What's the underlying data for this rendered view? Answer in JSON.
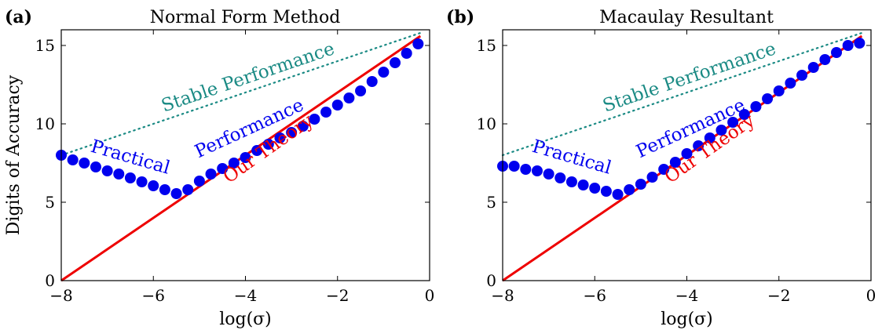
{
  "chart_data": [
    {
      "type": "line",
      "panel_label": "(a)",
      "title": "Normal Form Method",
      "xlabel": "log(σ)",
      "ylabel": "Digits of Accuracy",
      "xlim": [
        -8,
        0
      ],
      "ylim": [
        0,
        16
      ],
      "xticks": [
        "−8",
        "−6",
        "−4",
        "−2",
        "0"
      ],
      "yticks": [
        "0",
        "5",
        "10",
        "15"
      ],
      "series": [
        {
          "name": "Stable Performance",
          "color": "#1a8a84",
          "style": "dotted",
          "x": [
            -8,
            -0.2
          ],
          "y": [
            8.0,
            15.8
          ]
        },
        {
          "name": "Practical Performance",
          "color": "#0000ee",
          "style": "markers",
          "x": [
            -8.0,
            -7.75,
            -7.5,
            -7.25,
            -7.0,
            -6.75,
            -6.5,
            -6.25,
            -6.0,
            -5.75,
            -5.5,
            -5.25,
            -5.0,
            -4.75,
            -4.5,
            -4.25,
            -4.0,
            -3.75,
            -3.5,
            -3.25,
            -3.0,
            -2.75,
            -2.5,
            -2.25,
            -2.0,
            -1.75,
            -1.5,
            -1.25,
            -1.0,
            -0.75,
            -0.5,
            -0.25
          ],
          "y": [
            8.0,
            7.7,
            7.5,
            7.25,
            7.0,
            6.8,
            6.55,
            6.3,
            6.05,
            5.8,
            5.55,
            5.8,
            6.35,
            6.8,
            7.15,
            7.5,
            7.85,
            8.3,
            8.7,
            9.1,
            9.45,
            9.85,
            10.3,
            10.75,
            11.2,
            11.65,
            12.1,
            12.7,
            13.3,
            13.9,
            14.5,
            15.1
          ]
        },
        {
          "name": "Our Theory",
          "color": "#ee0000",
          "style": "solid",
          "x": [
            -8,
            -0.2
          ],
          "y": [
            0,
            15.6
          ]
        }
      ],
      "annotations": [
        "Stable Performance",
        "Practical",
        "Performance",
        "Our Theory"
      ]
    },
    {
      "type": "line",
      "panel_label": "(b)",
      "title": "Macaulay Resultant",
      "xlabel": "log(σ)",
      "ylabel": "",
      "xlim": [
        -8,
        0
      ],
      "ylim": [
        0,
        16
      ],
      "xticks": [
        "−8",
        "−6",
        "−4",
        "−2",
        "0"
      ],
      "yticks": [
        "0",
        "5",
        "10",
        "15"
      ],
      "series": [
        {
          "name": "Stable Performance",
          "color": "#1a8a84",
          "style": "dotted",
          "x": [
            -8,
            -0.2
          ],
          "y": [
            8.0,
            15.8
          ]
        },
        {
          "name": "Practical Performance",
          "color": "#0000ee",
          "style": "markers",
          "x": [
            -8.0,
            -7.75,
            -7.5,
            -7.25,
            -7.0,
            -6.75,
            -6.5,
            -6.25,
            -6.0,
            -5.75,
            -5.5,
            -5.25,
            -5.0,
            -4.75,
            -4.5,
            -4.25,
            -4.0,
            -3.75,
            -3.5,
            -3.25,
            -3.0,
            -2.75,
            -2.5,
            -2.25,
            -2.0,
            -1.75,
            -1.5,
            -1.25,
            -1.0,
            -0.75,
            -0.5,
            -0.25
          ],
          "y": [
            7.3,
            7.3,
            7.1,
            7.0,
            6.8,
            6.55,
            6.3,
            6.1,
            5.9,
            5.7,
            5.5,
            5.8,
            6.15,
            6.6,
            7.1,
            7.55,
            8.1,
            8.6,
            9.1,
            9.6,
            10.1,
            10.6,
            11.1,
            11.6,
            12.1,
            12.6,
            13.1,
            13.6,
            14.1,
            14.55,
            15.0,
            15.15
          ]
        },
        {
          "name": "Our Theory",
          "color": "#ee0000",
          "style": "solid",
          "x": [
            -8,
            -0.2
          ],
          "y": [
            0,
            15.6
          ]
        }
      ],
      "annotations": [
        "Stable Performance",
        "Practical",
        "Performance",
        "Our Theory"
      ]
    }
  ]
}
